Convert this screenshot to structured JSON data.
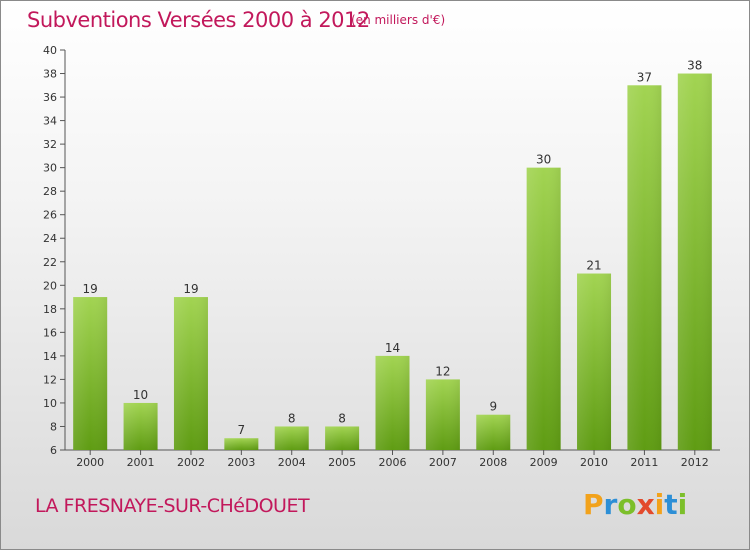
{
  "header": {
    "title": "Subventions Versées 2000 à 2012",
    "subtitle": "(en milliers d'€)"
  },
  "footer": {
    "location": "LA FRESNAYE-SUR-CHéDOUET",
    "brand_letters": [
      "P",
      "r",
      "o",
      "x",
      "i",
      "t",
      "i"
    ]
  },
  "colors": {
    "title": "#c2185b",
    "bar_light": "#9fd24a",
    "bar_dark": "#5e9a12",
    "grid": "#c8c8c8"
  },
  "chart_data": {
    "type": "bar",
    "title": "Subventions Versées 2000 à 2012",
    "subtitle": "(en milliers d'€)",
    "categories": [
      "2000",
      "2001",
      "2002",
      "2003",
      "2004",
      "2005",
      "2006",
      "2007",
      "2008",
      "2009",
      "2010",
      "2011",
      "2012"
    ],
    "values": [
      19,
      10,
      19,
      7,
      8,
      8,
      14,
      12,
      9,
      30,
      21,
      37,
      38
    ],
    "ylim": [
      6,
      40
    ],
    "yticks": [
      6,
      8,
      10,
      12,
      14,
      16,
      18,
      20,
      22,
      24,
      26,
      28,
      30,
      32,
      34,
      36,
      38,
      40
    ],
    "xlabel": "",
    "ylabel": "",
    "grid": false
  }
}
